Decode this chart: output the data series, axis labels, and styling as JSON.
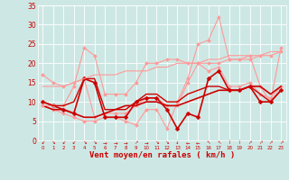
{
  "xlabel": "Vent moyen/en rafales ( km/h )",
  "bg_color": "#cde8e4",
  "grid_color": "#ffffff",
  "text_color": "#cc0000",
  "x": [
    0,
    1,
    2,
    3,
    4,
    5,
    6,
    7,
    8,
    9,
    10,
    11,
    12,
    13,
    14,
    15,
    16,
    17,
    18,
    19,
    20,
    21,
    22,
    23
  ],
  "series": [
    {
      "y": [
        17,
        15,
        14,
        15,
        16,
        6,
        7,
        7,
        7,
        9,
        11,
        11,
        9,
        9,
        15,
        20,
        18,
        19,
        14,
        14,
        15,
        12,
        11,
        14
      ],
      "color": "#ff9999",
      "lw": 0.8,
      "marker": true,
      "ms": 2.0
    },
    {
      "y": [
        9,
        8,
        7,
        6,
        5,
        5,
        6,
        6,
        5,
        4,
        8,
        8,
        3,
        10,
        16,
        25,
        26,
        32,
        21,
        21,
        22,
        14,
        10,
        24
      ],
      "color": "#ff9999",
      "lw": 0.8,
      "marker": true,
      "ms": 2.0
    },
    {
      "y": [
        10,
        9,
        8,
        7,
        16,
        15,
        6,
        6,
        6,
        10,
        11,
        11,
        8,
        3,
        7,
        6,
        16,
        18,
        13,
        13,
        14,
        10,
        10,
        13
      ],
      "color": "#cc0000",
      "lw": 1.2,
      "marker": true,
      "ms": 2.5
    },
    {
      "y": [
        9,
        8,
        8,
        7,
        6,
        6,
        7,
        8,
        9,
        9,
        10,
        10,
        9,
        9,
        10,
        11,
        12,
        13,
        13,
        13,
        14,
        14,
        12,
        14
      ],
      "color": "#cc0000",
      "lw": 1.2,
      "marker": false,
      "ms": 0
    },
    {
      "y": [
        9,
        9,
        9,
        14,
        24,
        22,
        12,
        12,
        12,
        15,
        20,
        20,
        21,
        21,
        20,
        20,
        20,
        20,
        21,
        21,
        21,
        22,
        22,
        23
      ],
      "color": "#ff9999",
      "lw": 0.8,
      "marker": true,
      "ms": 2.0
    },
    {
      "y": [
        10,
        9,
        9,
        10,
        16,
        16,
        8,
        8,
        8,
        10,
        12,
        12,
        10,
        10,
        12,
        13,
        14,
        14,
        13,
        13,
        14,
        12,
        10,
        13
      ],
      "color": "#cc0000",
      "lw": 1.0,
      "marker": false,
      "ms": 0
    },
    {
      "y": [
        14,
        14,
        14,
        15,
        16,
        17,
        17,
        17,
        18,
        18,
        18,
        19,
        19,
        20,
        20,
        20,
        21,
        21,
        22,
        22,
        22,
        22,
        23,
        23
      ],
      "color": "#ff9999",
      "lw": 0.8,
      "marker": false,
      "ms": 0
    }
  ],
  "ylim": [
    0,
    35
  ],
  "yticks": [
    0,
    5,
    10,
    15,
    20,
    25,
    30,
    35
  ],
  "xlim": [
    -0.5,
    23.5
  ],
  "xticks": [
    0,
    1,
    2,
    3,
    4,
    5,
    6,
    7,
    8,
    9,
    10,
    11,
    12,
    13,
    14,
    15,
    16,
    17,
    18,
    19,
    20,
    21,
    22,
    23
  ],
  "arrows": [
    "↙",
    "↘",
    "↙",
    "↙",
    "↘",
    "↘",
    "→",
    "→",
    "→",
    "↗",
    "→",
    "↘",
    "↘",
    "↓",
    "←",
    "←",
    "↖",
    "↖",
    "↑",
    "↑",
    "↗",
    "↗",
    "↗",
    "↗"
  ]
}
